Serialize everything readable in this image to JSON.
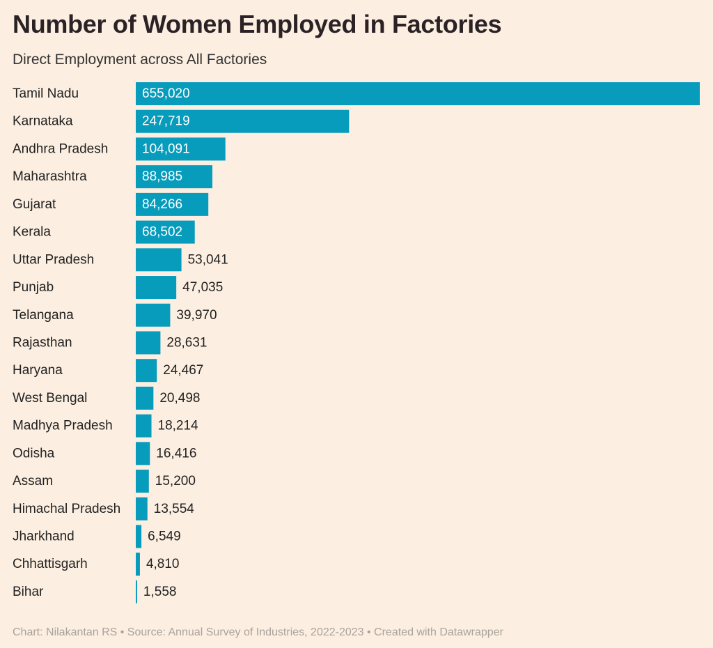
{
  "chart_data": {
    "type": "bar",
    "orientation": "horizontal",
    "title": "Number of Women Employed in Factories",
    "subtitle": "Direct Employment across All Factories",
    "xlabel": "",
    "ylabel": "",
    "categories": [
      "Tamil Nadu",
      "Karnataka",
      "Andhra Pradesh",
      "Maharashtra",
      "Gujarat",
      "Kerala",
      "Uttar Pradesh",
      "Punjab",
      "Telangana",
      "Rajasthan",
      "Haryana",
      "West Bengal",
      "Madhya Pradesh",
      "Odisha",
      "Assam",
      "Himachal Pradesh",
      "Jharkhand",
      "Chhattisgarh",
      "Bihar"
    ],
    "values": [
      655020,
      247719,
      104091,
      88985,
      84266,
      68502,
      53041,
      47035,
      39970,
      28631,
      24467,
      20498,
      18214,
      16416,
      15200,
      13554,
      6549,
      4810,
      1558
    ],
    "value_labels": [
      "655,020",
      "247,719",
      "104,091",
      "88,985",
      "84,266",
      "68,502",
      "53,041",
      "47,035",
      "39,970",
      "28,631",
      "24,467",
      "20,498",
      "18,214",
      "16,416",
      "15,200",
      "13,554",
      "6,549",
      "4,810",
      "1,558"
    ],
    "xlim": [
      0,
      655020
    ],
    "grid": false,
    "legend": "none",
    "colors": {
      "bar": "#079bbc",
      "background": "#fcefe1",
      "label_inside": "#ffffff",
      "label_outside": "#222222",
      "footer": "#a9a29c"
    }
  },
  "footer": "Chart: Nilakantan RS • Source: Annual Survey of Industries, 2022-2023 • Created with Datawrapper"
}
